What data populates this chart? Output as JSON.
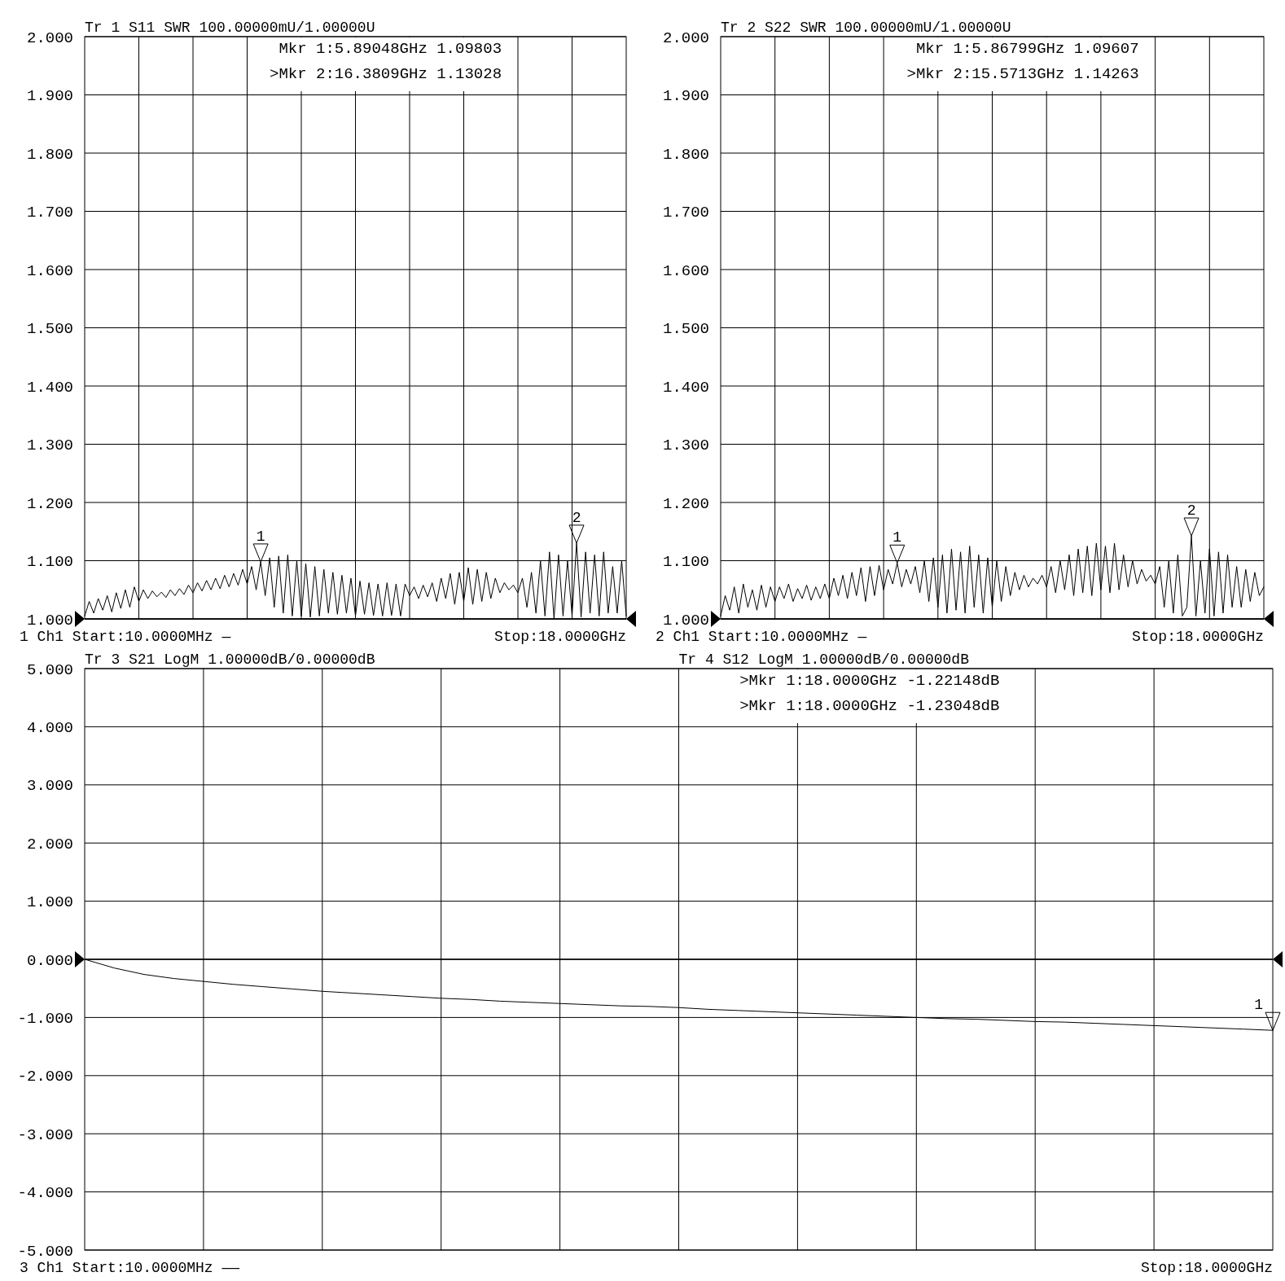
{
  "chart_data": [
    {
      "type": "line",
      "title": "Tr 1  S11 SWR 100.00000mU/1.00000U",
      "ylim": [
        1,
        2
      ],
      "tick_labels": "y",
      "grid": true,
      "yticks": [
        {
          "value": 1,
          "label": "1.000"
        },
        {
          "value": 1.1,
          "label": "1.100"
        },
        {
          "value": 1.2,
          "label": "1.200"
        },
        {
          "value": 1.3,
          "label": "1.300"
        },
        {
          "value": 1.4,
          "label": "1.400"
        },
        {
          "value": 1.5,
          "label": "1.500"
        },
        {
          "value": 1.6,
          "label": "1.600"
        },
        {
          "value": 1.7,
          "label": "1.700"
        },
        {
          "value": 1.8,
          "label": "1.800"
        },
        {
          "value": 1.9,
          "label": "1.900"
        },
        {
          "value": 2,
          "label": "2.000"
        }
      ],
      "categories": [
        null,
        null,
        null,
        null,
        null,
        null,
        null,
        null,
        null,
        null,
        null,
        null,
        null,
        null,
        null,
        null,
        null,
        null,
        null,
        null,
        null,
        null,
        null,
        null,
        null,
        null,
        null,
        null,
        null,
        null,
        null,
        null,
        null,
        null,
        null,
        null,
        null,
        null,
        null,
        null,
        null,
        null,
        null,
        null,
        null,
        null,
        null,
        null,
        null,
        null,
        null,
        null,
        null,
        null,
        null,
        null,
        null,
        null,
        null,
        null,
        null,
        null,
        null,
        null,
        null,
        null,
        null,
        null,
        null,
        null,
        null,
        null,
        null,
        null,
        null,
        null,
        null,
        null,
        null,
        null,
        null,
        null,
        null,
        null,
        null,
        null,
        null,
        null,
        null,
        null,
        null,
        null,
        null,
        null,
        null,
        null,
        null,
        null,
        null,
        null,
        null,
        null,
        null,
        null,
        null,
        null,
        null,
        null,
        null,
        null,
        null,
        null,
        null,
        null,
        null,
        null,
        null,
        null,
        null,
        null,
        null
      ],
      "series": [
        {
          "color": "#000000",
          "values": [
            1.005,
            1.03,
            1.01,
            1.035,
            1.015,
            1.04,
            1.012,
            1.045,
            1.018,
            1.05,
            1.02,
            1.055,
            1.03,
            1.05,
            1.035,
            1.048,
            1.038,
            1.046,
            1.037,
            1.05,
            1.04,
            1.052,
            1.042,
            1.058,
            1.045,
            1.062,
            1.048,
            1.066,
            1.05,
            1.07,
            1.052,
            1.075,
            1.055,
            1.078,
            1.058,
            1.085,
            1.06,
            1.09,
            1.05,
            1.09803,
            1.04,
            1.105,
            1.02,
            1.108,
            1.01,
            1.11,
            1.005,
            1.1,
            1.005,
            1.095,
            1.003,
            1.09,
            1.005,
            1.085,
            1.01,
            1.08,
            1.008,
            1.075,
            1.01,
            1.07,
            1.005,
            1.065,
            1.008,
            1.062,
            1.006,
            1.06,
            1.005,
            1.062,
            1.006,
            1.06,
            1.005,
            1.06,
            1.04,
            1.055,
            1.035,
            1.058,
            1.038,
            1.062,
            1.03,
            1.07,
            1.035,
            1.078,
            1.025,
            1.08,
            1.03,
            1.088,
            1.025,
            1.085,
            1.03,
            1.08,
            1.035,
            1.07,
            1.045,
            1.062,
            1.05,
            1.058,
            1.045,
            1.07,
            1.02,
            1.08,
            1.01,
            1.1,
            1.005,
            1.115,
            1,
            1.11,
            1.005,
            1.1,
            1.005,
            1.13028,
            1.003,
            1.115,
            1.01,
            1.11,
            1.005,
            1.115,
            1.01,
            1.09,
            1.01,
            1.1,
            1.005
          ]
        }
      ],
      "ref_lines": [
        {
          "axis": "y",
          "value": 1
        }
      ],
      "annotations": [
        "Mkr 1:5.89048GHz 1.09803",
        ">Mkr 2:16.3809GHz 1.13028",
        {
          "text": "1",
          "y": 1.09803
        },
        {
          "text": "2",
          "y": 1.13028
        },
        "1  Ch1  Start:10.0000MHz —",
        "Stop:18.0000GHz"
      ]
    },
    {
      "type": "line",
      "title": "Tr 2  S22 SWR 100.00000mU/1.00000U",
      "ylim": [
        1,
        2
      ],
      "tick_labels": "y",
      "grid": true,
      "yticks": [
        {
          "value": 1,
          "label": "1.000"
        },
        {
          "value": 1.1,
          "label": "1.100"
        },
        {
          "value": 1.2,
          "label": "1.200"
        },
        {
          "value": 1.3,
          "label": "1.300"
        },
        {
          "value": 1.4,
          "label": "1.400"
        },
        {
          "value": 1.5,
          "label": "1.500"
        },
        {
          "value": 1.6,
          "label": "1.600"
        },
        {
          "value": 1.7,
          "label": "1.700"
        },
        {
          "value": 1.8,
          "label": "1.800"
        },
        {
          "value": 1.9,
          "label": "1.900"
        },
        {
          "value": 2,
          "label": "2.000"
        }
      ],
      "categories": [
        null,
        null,
        null,
        null,
        null,
        null,
        null,
        null,
        null,
        null,
        null,
        null,
        null,
        null,
        null,
        null,
        null,
        null,
        null,
        null,
        null,
        null,
        null,
        null,
        null,
        null,
        null,
        null,
        null,
        null,
        null,
        null,
        null,
        null,
        null,
        null,
        null,
        null,
        null,
        null,
        null,
        null,
        null,
        null,
        null,
        null,
        null,
        null,
        null,
        null,
        null,
        null,
        null,
        null,
        null,
        null,
        null,
        null,
        null,
        null,
        null,
        null,
        null,
        null,
        null,
        null,
        null,
        null,
        null,
        null,
        null,
        null,
        null,
        null,
        null,
        null,
        null,
        null,
        null,
        null,
        null,
        null,
        null,
        null,
        null,
        null,
        null,
        null,
        null,
        null,
        null,
        null,
        null,
        null,
        null,
        null,
        null,
        null,
        null,
        null,
        null,
        null,
        null,
        null,
        null,
        null,
        null,
        null,
        null,
        null,
        null,
        null,
        null,
        null,
        null,
        null,
        null,
        null,
        null,
        null,
        null
      ],
      "series": [
        {
          "color": "#000000",
          "values": [
            1.005,
            1.04,
            1.015,
            1.055,
            1.01,
            1.06,
            1.02,
            1.05,
            1.015,
            1.058,
            1.02,
            1.055,
            1.03,
            1.055,
            1.035,
            1.06,
            1.03,
            1.052,
            1.035,
            1.058,
            1.032,
            1.055,
            1.035,
            1.06,
            1.035,
            1.07,
            1.04,
            1.075,
            1.035,
            1.08,
            1.04,
            1.088,
            1.03,
            1.09,
            1.04,
            1.092,
            1.05,
            1.085,
            1.06,
            1.09607,
            1.055,
            1.085,
            1.06,
            1.09,
            1.045,
            1.1,
            1.03,
            1.105,
            1.02,
            1.11,
            1.01,
            1.12,
            1.015,
            1.115,
            1.01,
            1.125,
            1.02,
            1.11,
            1.01,
            1.105,
            1.02,
            1.1,
            1.03,
            1.09,
            1.04,
            1.08,
            1.05,
            1.075,
            1.055,
            1.07,
            1.06,
            1.075,
            1.055,
            1.09,
            1.045,
            1.1,
            1.05,
            1.11,
            1.04,
            1.12,
            1.045,
            1.125,
            1.04,
            1.13,
            1.05,
            1.125,
            1.045,
            1.13,
            1.05,
            1.11,
            1.055,
            1.1,
            1.06,
            1.085,
            1.065,
            1.075,
            1.06,
            1.09,
            1.02,
            1.1,
            1.01,
            1.11,
            1.005,
            1.02,
            1.14263,
            1.005,
            1.1,
            1.01,
            1.12,
            1.005,
            1.115,
            1.01,
            1.11,
            1.02,
            1.09,
            1.02,
            1.085,
            1.03,
            1.08,
            1.04,
            1.055
          ]
        }
      ],
      "ref_lines": [
        {
          "axis": "y",
          "value": 1
        }
      ],
      "annotations": [
        "Mkr 1:5.86799GHz 1.09607",
        ">Mkr 2:15.5713GHz 1.14263",
        {
          "text": "1",
          "y": 1.09607
        },
        {
          "text": "2",
          "y": 1.14263
        },
        "2  Ch1  Start:10.0000MHz —",
        "Stop:18.0000GHz"
      ]
    },
    {
      "type": "line",
      "title": "Tr 3  S21 LogM 1.00000dB/0.00000dB",
      "subtitle": "Tr 4  S12 LogM 1.00000dB/0.00000dB",
      "ylim": [
        -5,
        5
      ],
      "tick_labels": "y",
      "grid": true,
      "yticks": [
        {
          "value": -5,
          "label": "-5.000"
        },
        {
          "value": -4,
          "label": "-4.000"
        },
        {
          "value": -3,
          "label": "-3.000"
        },
        {
          "value": -2,
          "label": "-2.000"
        },
        {
          "value": -1,
          "label": "-1.000"
        },
        {
          "value": 0,
          "label": "0.000"
        },
        {
          "value": 1,
          "label": "1.000"
        },
        {
          "value": 2,
          "label": "2.000"
        },
        {
          "value": 3,
          "label": "3.000"
        },
        {
          "value": 4,
          "label": "4.000"
        },
        {
          "value": 5,
          "label": "5.000"
        }
      ],
      "categories": [
        null,
        null,
        null,
        null,
        null,
        null,
        null,
        null,
        null,
        null,
        null,
        null,
        null,
        null,
        null,
        null,
        null,
        null,
        null,
        null,
        null,
        null,
        null,
        null,
        null,
        null,
        null,
        null,
        null,
        null,
        null,
        null,
        null,
        null,
        null,
        null,
        null,
        null,
        null,
        null,
        null
      ],
      "series": [
        {
          "color": "#000000",
          "values": [
            0,
            -0.15,
            -0.26,
            -0.33,
            -0.38,
            -0.43,
            -0.47,
            -0.51,
            -0.55,
            -0.58,
            -0.61,
            -0.64,
            -0.67,
            -0.69,
            -0.72,
            -0.74,
            -0.76,
            -0.78,
            -0.8,
            -0.81,
            -0.83,
            -0.86,
            -0.88,
            -0.9,
            -0.92,
            -0.94,
            -0.96,
            -0.98,
            -1.0,
            -1.02,
            -1.03,
            -1.05,
            -1.07,
            -1.08,
            -1.1,
            -1.12,
            -1.14,
            -1.16,
            -1.18,
            -1.2,
            -1.22148
          ]
        }
      ],
      "ref_lines": [
        {
          "axis": "y",
          "value": 0
        }
      ],
      "annotations": [
        ">Mkr 1:18.0000GHz -1.22148dB",
        ">Mkr 1:18.0000GHz -1.23048dB",
        {
          "text": "1",
          "y": -1.22148
        },
        "3  Ch1  Start:10.0000MHz ——",
        "Stop:18.0000GHz"
      ]
    }
  ]
}
